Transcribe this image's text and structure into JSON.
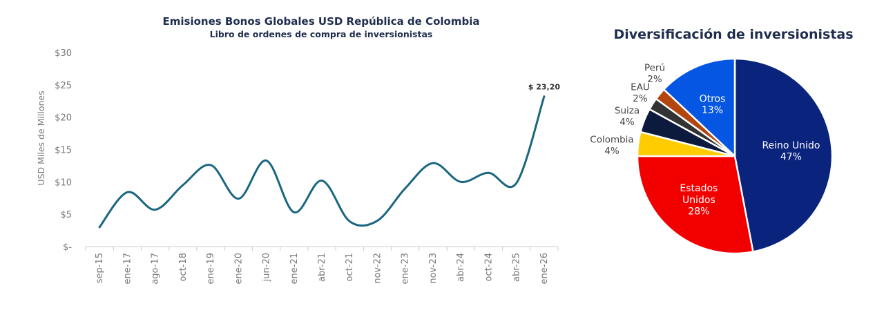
{
  "line_chart": {
    "title": "Emisiones Bonos Globales USD República de Colombia",
    "subtitle": "Libro de ordenes de compra de inversionistas",
    "line_color": "#1a6680",
    "title_color": "#1f2d4e"
  },
  "pie_chart": {
    "title": "Diversificación de inversionistas",
    "title_color": "#1f2d4e"
  },
  "chart_data": [
    {
      "type": "line",
      "title": "Emisiones Bonos Globales USD República de Colombia",
      "subtitle": "Libro de ordenes de compra de inversionistas",
      "xlabel": "",
      "ylabel": "USD Miles de Millones",
      "ylim": [
        0,
        30
      ],
      "yticks": [
        0,
        5,
        10,
        15,
        20,
        25,
        30
      ],
      "ytick_labels": [
        "$-",
        "$5",
        "$10",
        "$15",
        "$20",
        "$25",
        "$30"
      ],
      "categories": [
        "sep-15",
        "ene-17",
        "ago-17",
        "oct-18",
        "ene-19",
        "ene-20",
        "jun-20",
        "ene-21",
        "abr-21",
        "oct-21",
        "nov-22",
        "ene-23",
        "nov-23",
        "abr-24",
        "oct-24",
        "abr-25",
        "ene-26"
      ],
      "values": [
        3.0,
        8.4,
        5.7,
        9.5,
        12.6,
        7.4,
        13.3,
        5.3,
        10.2,
        3.9,
        4.0,
        9.0,
        12.9,
        10.0,
        11.4,
        9.8,
        23.2
      ],
      "annotation": "$ 23,20",
      "grid": false,
      "legend": "none"
    },
    {
      "type": "pie",
      "title": "Diversificación de inversionistas",
      "slices": [
        {
          "label": "Reino Unido",
          "value": 47,
          "value_label": "47%",
          "color": "#0a237c",
          "label_color": "#ffffff"
        },
        {
          "label": "Estados Unidos",
          "label_lines": [
            "Estados",
            "Unidos"
          ],
          "value": 28,
          "value_label": "28%",
          "color": "#f20000",
          "label_color": "#ffffff"
        },
        {
          "label": "Colombia",
          "value": 4,
          "value_label": "4%",
          "color": "#ffcc00",
          "label_color": "#444444"
        },
        {
          "label": "Suiza",
          "value": 4,
          "value_label": "4%",
          "color": "#0b1a3d",
          "label_color": "#444444"
        },
        {
          "label": "EAU",
          "value": 2,
          "value_label": "2%",
          "color": "#333333",
          "label_color": "#444444"
        },
        {
          "label": "Perú",
          "value": 2,
          "value_label": "2%",
          "color": "#b3460e",
          "label_color": "#444444"
        },
        {
          "label": "Otros",
          "value": 13,
          "value_label": "13%",
          "color": "#0557e3",
          "label_color": "#ffffff"
        }
      ],
      "legend": "none"
    }
  ]
}
